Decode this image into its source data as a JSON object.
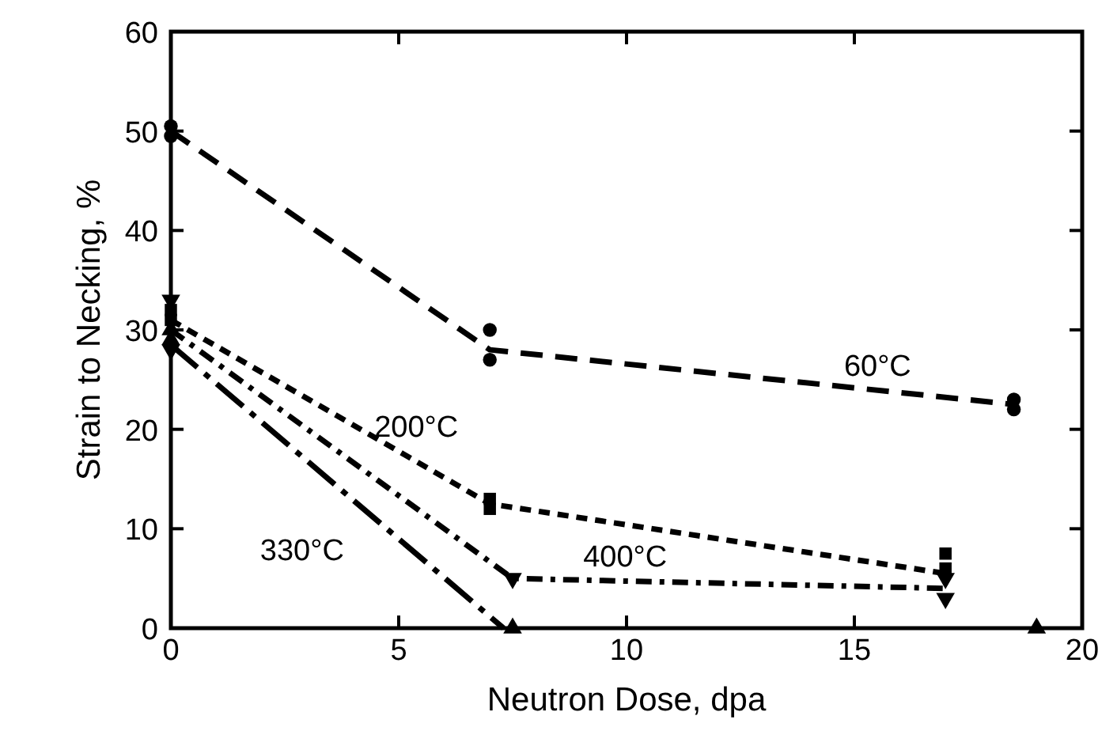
{
  "chart_data": {
    "type": "line",
    "xlabel": "Neutron Dose, dpa",
    "ylabel": "Strain to Necking, %",
    "xlim": [
      0,
      20
    ],
    "xticks": [
      0,
      5,
      10,
      15,
      20
    ],
    "ylim": [
      0,
      60
    ],
    "yticks": [
      0,
      10,
      20,
      30,
      40,
      50,
      60
    ],
    "grid": false,
    "series": [
      {
        "name": "60°C",
        "color": "#000000",
        "line_style": "dashed",
        "marker": "none",
        "x": [
          0,
          7,
          18.5
        ],
        "values": [
          50,
          28,
          22.5
        ]
      },
      {
        "name": "200°C",
        "color": "#000000",
        "line_style": "dotted",
        "marker": "none",
        "x": [
          0,
          7,
          17
        ],
        "values": [
          31,
          12.5,
          5.5
        ]
      },
      {
        "name": "400°C",
        "color": "#000000",
        "line_style": "dashdot",
        "marker": "none",
        "x": [
          0,
          7.5,
          17
        ],
        "values": [
          30,
          5,
          4
        ]
      },
      {
        "name": "330°C",
        "color": "#000000",
        "line_style": "longdashdot",
        "marker": "none",
        "x": [
          0,
          7.3
        ],
        "values": [
          28.5,
          0
        ]
      },
      {
        "type": "scatter",
        "color": "#000000",
        "marker": "circle",
        "x": [
          0,
          0,
          7,
          7,
          18.5,
          18.5
        ],
        "values": [
          49.5,
          50.5,
          30,
          27,
          23,
          22
        ]
      },
      {
        "type": "scatter",
        "color": "#000000",
        "marker": "square",
        "x": [
          0,
          0,
          7,
          7,
          17,
          17
        ],
        "values": [
          31,
          32,
          12,
          13,
          6,
          7.5
        ]
      },
      {
        "type": "scatter",
        "color": "#000000",
        "marker": "triangle-down",
        "x": [
          0,
          0,
          7.5,
          17,
          17
        ],
        "values": [
          33,
          28,
          5,
          5,
          3
        ]
      },
      {
        "type": "scatter",
        "color": "#000000",
        "marker": "triangle",
        "x": [
          0,
          0,
          7.5,
          19
        ],
        "values": [
          29,
          30,
          0,
          0
        ]
      }
    ]
  }
}
